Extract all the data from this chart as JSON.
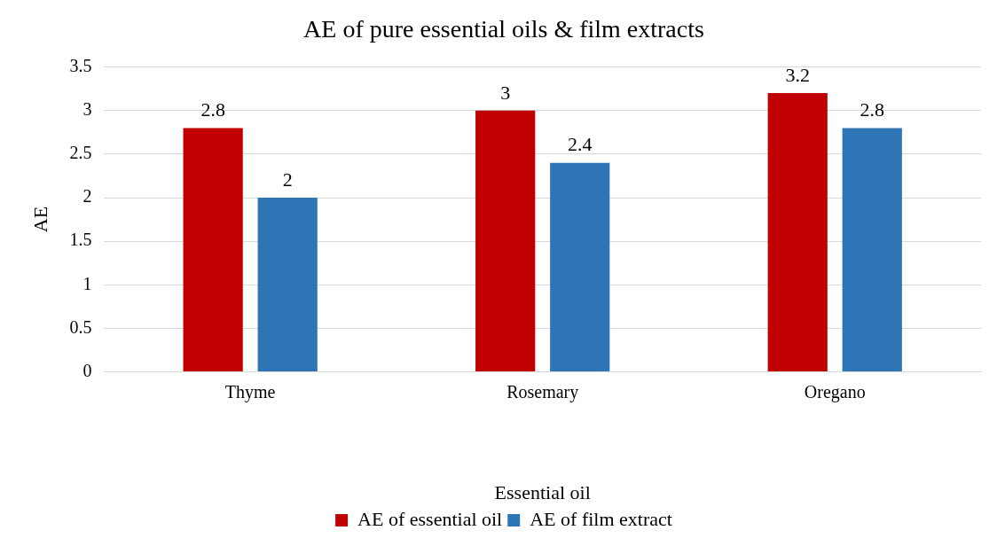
{
  "chart_data": {
    "type": "bar",
    "title": "AE of pure essential oils & film extracts",
    "xlabel": "Essential oil",
    "ylabel": "AE",
    "categories": [
      "Thyme",
      "Rosemary",
      "Oregano"
    ],
    "series": [
      {
        "name": "AE of essential oil",
        "color": "#c00000",
        "values": [
          2.8,
          3,
          3.2
        ]
      },
      {
        "name": "AE of film extract",
        "color": "#2e75b6",
        "values": [
          2,
          2.4,
          2.8
        ]
      }
    ],
    "ylim": [
      0,
      3.5
    ],
    "yticks": [
      0,
      0.5,
      1,
      1.5,
      2,
      2.5,
      3,
      3.5
    ],
    "grid": "y",
    "legend": "bottom",
    "data_labels": true
  }
}
